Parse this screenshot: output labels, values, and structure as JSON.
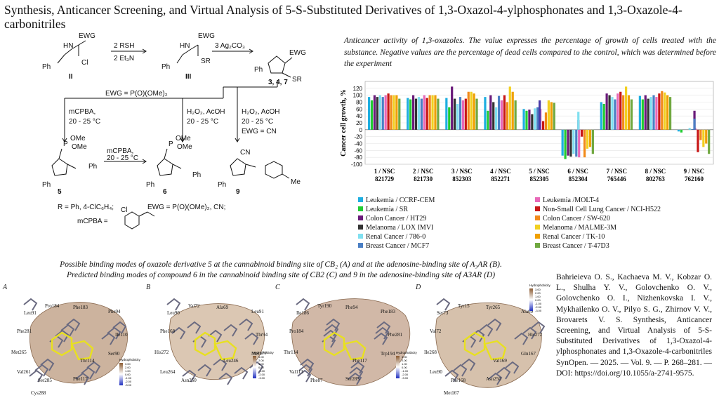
{
  "title": "Synthesis, Anticancer Screening, and Virtual Analysis of 5-S-Substituted Derivatives of 1,3-Oxazol-4-ylphosphonates and 1,3-Oxazole-4-carbonitriles",
  "scheme": {
    "ewg": "EWG",
    "step1_reagents": [
      "2 RSH",
      "2 Et₃N"
    ],
    "step2_reagent": "3 Ag₂CO₃",
    "cmpd_II": "II",
    "cmpd_III": "III",
    "cmpd_347": "3, 4, 7",
    "cl": "Cl",
    "sr": "SR",
    "hn": "HN",
    "ph": "Ph",
    "ewg_phos": "EWG = P(O)(OMe)₂",
    "mcpba_1": [
      "mCPBA,",
      "20 - 25 °C"
    ],
    "h2o2_1": [
      "H₂O₂, AcOH",
      "20 - 25 °C"
    ],
    "h2o2_2": [
      "H₂O₂, AcOH",
      "20 - 25 °C",
      "EWG = CN"
    ],
    "mcpba_2": [
      "mCPBA,",
      "20 - 25 °C"
    ],
    "cmpd_5": "5",
    "cmpd_6": "6",
    "cmpd_9": "9",
    "ome": "OMe",
    "p_atom": "P",
    "cn": "CN",
    "me": "Me",
    "r_def": "R = Ph, 4-ClC₆H₄;",
    "ewg_def": "EWG = P(O)(OMe)₂, CN;",
    "mcpba_def": "mCPBA ="
  },
  "chart_caption": "Anticancer activity of 1,3-oxazoles. The value expresses the percentage of growth of cells treated with the substance. Negative values are the percentage of dead cells compared to the control, which was determined before the experiment",
  "chart_data": {
    "type": "bar",
    "ylabel": "Cancer cell growth, %",
    "ylim": [
      -100,
      140
    ],
    "yticks": [
      -100,
      -80,
      -60,
      -40,
      -20,
      0,
      20,
      40,
      60,
      80,
      100,
      120
    ],
    "categories": [
      [
        "1 / NSC",
        "821729"
      ],
      [
        "2 / NSC",
        "821730"
      ],
      [
        "3 / NSC",
        "852303"
      ],
      [
        "4 / NSC",
        "852271"
      ],
      [
        "5 / NSC",
        "852305"
      ],
      [
        "6 / NSC",
        "852304"
      ],
      [
        "7 / NSC",
        "765446"
      ],
      [
        "8 / NSC",
        "802763"
      ],
      [
        "9 / NSC",
        "762160"
      ]
    ],
    "series": [
      {
        "name": "Leukemia / CCRF-CEM",
        "color": "#1eaee0",
        "values": [
          95,
          92,
          92,
          95,
          60,
          -75,
          80,
          98,
          -5
        ]
      },
      {
        "name": "Leukemia / SR",
        "color": "#22cc33",
        "values": [
          85,
          88,
          65,
          55,
          55,
          -85,
          75,
          88,
          -8
        ]
      },
      {
        "name": "Colon Cancer / HT29",
        "color": "#6a1a7a",
        "values": [
          100,
          100,
          125,
          100,
          58,
          -75,
          105,
          100,
          0
        ]
      },
      {
        "name": "Melanoma / LOX IMVI",
        "color": "#333333",
        "values": [
          95,
          90,
          90,
          80,
          45,
          -78,
          100,
          90,
          0
        ]
      },
      {
        "name": "Renal Cancer / 786-0",
        "color": "#80e0f0",
        "values": [
          100,
          95,
          75,
          65,
          62,
          -70,
          95,
          95,
          5
        ]
      },
      {
        "name": "Breast Cancer / MCF7",
        "color": "#4a7fc4",
        "values": [
          95,
          90,
          95,
          98,
          65,
          -78,
          88,
          100,
          2
        ]
      },
      {
        "name": "Leukemia /MOLT-4",
        "color": "#e868b8",
        "values": [
          100,
          100,
          85,
          85,
          60,
          -80,
          105,
          95,
          5
        ]
      },
      {
        "name": "Non-Small Cell Lung Cancer / NCI-H522",
        "color": "#c81616",
        "values": [
          105,
          92,
          90,
          100,
          25,
          -20,
          110,
          105,
          -65
        ]
      },
      {
        "name": "Colon Cancer / SW-620",
        "color": "#f28a1a",
        "values": [
          100,
          100,
          110,
          80,
          50,
          -80,
          100,
          112,
          -30
        ]
      },
      {
        "name": "Melanoma / MALME-3M",
        "color": "#f2d020",
        "values": [
          100,
          100,
          110,
          125,
          85,
          -55,
          125,
          108,
          -50
        ]
      },
      {
        "name": "Renal Cancer / TK-10",
        "color": "#f0a000",
        "values": [
          100,
          100,
          105,
          110,
          80,
          -50,
          100,
          100,
          -40
        ]
      },
      {
        "name": "Breast Cancer / T-47D3",
        "color": "#70a840",
        "values": [
          90,
          90,
          90,
          85,
          78,
          -70,
          88,
          95,
          -70
        ]
      }
    ],
    "extra_marks": [
      {
        "category": 4,
        "color": "#4a3aa8",
        "value": 85
      },
      {
        "category": 5,
        "color": "#6a1a7a",
        "value": 28
      },
      {
        "category": 5,
        "color": "#80e0f0",
        "value": 52
      },
      {
        "category": 8,
        "color": "#6a1a7a",
        "value": 55
      },
      {
        "category": 8,
        "color": "#4a7fc4",
        "value": 32
      }
    ]
  },
  "legend_order": [
    0,
    6,
    1,
    7,
    2,
    8,
    3,
    9,
    4,
    10,
    5,
    11
  ],
  "binding_caption": {
    "line1": "Possible binding modes of oxazole derivative 5 at the cannabinoid binding site of CB₂ (A) and at the adenosine-binding site of A₃AR (B).",
    "line2": "Predicted binding modes of compound 6 in the cannabinoid binding site of CB2 (C) and 9 in the adenosine-binding site of A3AR (D)"
  },
  "panels": {
    "A": {
      "letter": "A",
      "labels": [
        "Pro184",
        "Leu91",
        "Phe183",
        "Phe94",
        "Phe281",
        "Ile110",
        "Met265",
        "Ser90",
        "Val261",
        "Thr114",
        "Ser285",
        "Phe117",
        "Cys288"
      ],
      "scale_title": "Hydrophobicity"
    },
    "B": {
      "letter": "B",
      "labels": [
        "Val72",
        "Leu90",
        "Ala69",
        "Leu91",
        "Phe168",
        "Thr94",
        "His272",
        "Met177",
        "Leu264",
        "Leu246",
        "Asn250"
      ],
      "scale_title": "Hydrophobicity"
    },
    "C": {
      "letter": "C",
      "labels": [
        "Tyr190",
        "Ile186",
        "Phe94",
        "Phe183",
        "Pro184",
        "Phe281",
        "Thr114",
        "Trp194",
        "Val113",
        "Phe117",
        "Phe87",
        "Ser285"
      ],
      "scale_title": "Hydrophobicity"
    },
    "D": {
      "letter": "D",
      "labels": [
        "Tyr15",
        "Ser73",
        "Tyr265",
        "Ala69",
        "Val72",
        "His272",
        "Ile268",
        "Gln167",
        "Leu90",
        "Val169",
        "Phe168",
        "Asn250",
        "Met167"
      ],
      "scale_title": "Hydrophobicity"
    }
  },
  "scale_ticks": [
    "3.00",
    "2.00",
    "1.00",
    "0.00",
    "-1.00",
    "-2.00",
    "-3.00"
  ],
  "citation": "Bahrieieva O. S., Kachaeva M. V., Kobzar O. L., Shulha Y. V., Golovchenko O. V., Golovchenko O. I., Nizhenkovska I. V., Mykhailenko O. V., Pilyo S. G., Zhirnov V. V., Brovarets V. S. Synthesis, Anticancer Screening, and Virtual Analysis of 5-S-Substituted Derivatives of 1,3-Oxazol-4-ylphosphonates and 1,3-Oxazole-4-carbonitriles SynOpen. — 2025. — Vol. 9. — P. 268–281. — DOI: https://doi.org/10.1055/a-2741-9575."
}
